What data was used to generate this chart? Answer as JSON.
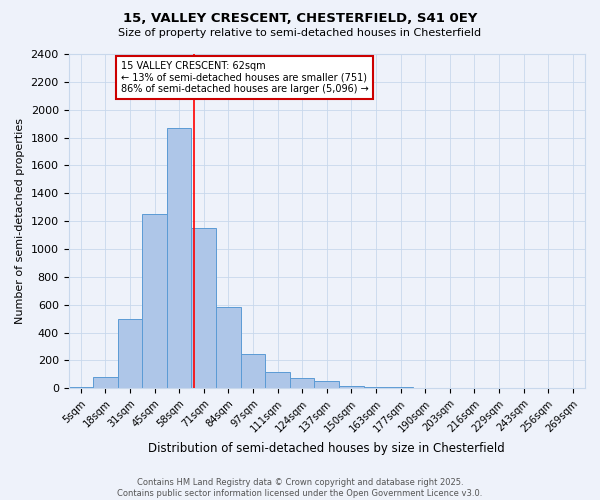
{
  "title1": "15, VALLEY CRESCENT, CHESTERFIELD, S41 0EY",
  "title2": "Size of property relative to semi-detached houses in Chesterfield",
  "xlabel": "Distribution of semi-detached houses by size in Chesterfield",
  "ylabel": "Number of semi-detached properties",
  "footer": "Contains HM Land Registry data © Crown copyright and database right 2025.\nContains public sector information licensed under the Open Government Licence v3.0.",
  "categories": [
    "5sqm",
    "18sqm",
    "31sqm",
    "45sqm",
    "58sqm",
    "71sqm",
    "84sqm",
    "97sqm",
    "111sqm",
    "124sqm",
    "137sqm",
    "150sqm",
    "163sqm",
    "177sqm",
    "190sqm",
    "203sqm",
    "216sqm",
    "229sqm",
    "243sqm",
    "256sqm",
    "269sqm"
  ],
  "values": [
    10,
    80,
    500,
    1250,
    1870,
    1150,
    585,
    245,
    120,
    75,
    50,
    15,
    10,
    10,
    0,
    0,
    0,
    0,
    0,
    0,
    0
  ],
  "bar_color": "#aec6e8",
  "bar_edge_color": "#5b9bd5",
  "grid_color": "#c8d8ec",
  "background_color": "#eef2fa",
  "red_line_index": 4.62,
  "annotation_text": "15 VALLEY CRESCENT: 62sqm\n← 13% of semi-detached houses are smaller (751)\n86% of semi-detached houses are larger (5,096) →",
  "annotation_box_color": "#ffffff",
  "annotation_box_edge": "#cc0000",
  "ylim": [
    0,
    2400
  ],
  "yticks": [
    0,
    200,
    400,
    600,
    800,
    1000,
    1200,
    1400,
    1600,
    1800,
    2000,
    2200,
    2400
  ]
}
